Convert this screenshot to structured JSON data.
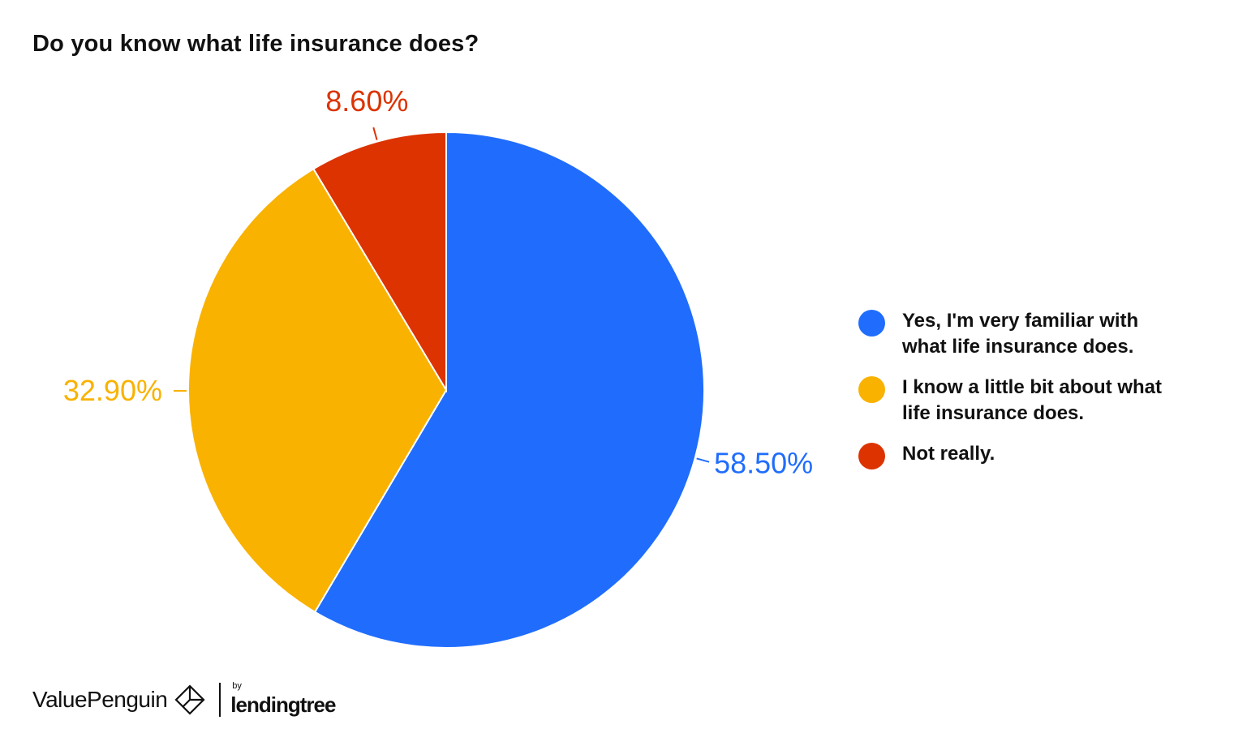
{
  "title": "Do you know what life insurance does?",
  "chart_data": {
    "type": "pie",
    "title": "Do you know what life insurance does?",
    "categories": [
      "Yes, I'm very familiar with what life insurance does.",
      "I know a little bit about what life insurance does.",
      "Not really."
    ],
    "values": [
      58.5,
      32.9,
      8.6
    ],
    "labels": [
      "58.50%",
      "32.90%",
      "8.60%"
    ],
    "colors": [
      "#206DFD",
      "#F9B200",
      "#DC3300"
    ],
    "start_angle": "12 o'clock, clockwise",
    "legend_position": "right"
  },
  "legend": [
    {
      "label": "Yes, I'm very familiar with what life insurance does.",
      "color": "#206DFD"
    },
    {
      "label": "I know a little bit about what life insurance does.",
      "color": "#F9B200"
    },
    {
      "label": "Not really.",
      "color": "#DC3300"
    }
  ],
  "footer": {
    "brand": "ValuePenguin",
    "by": "by",
    "partner": "lendingtree"
  }
}
